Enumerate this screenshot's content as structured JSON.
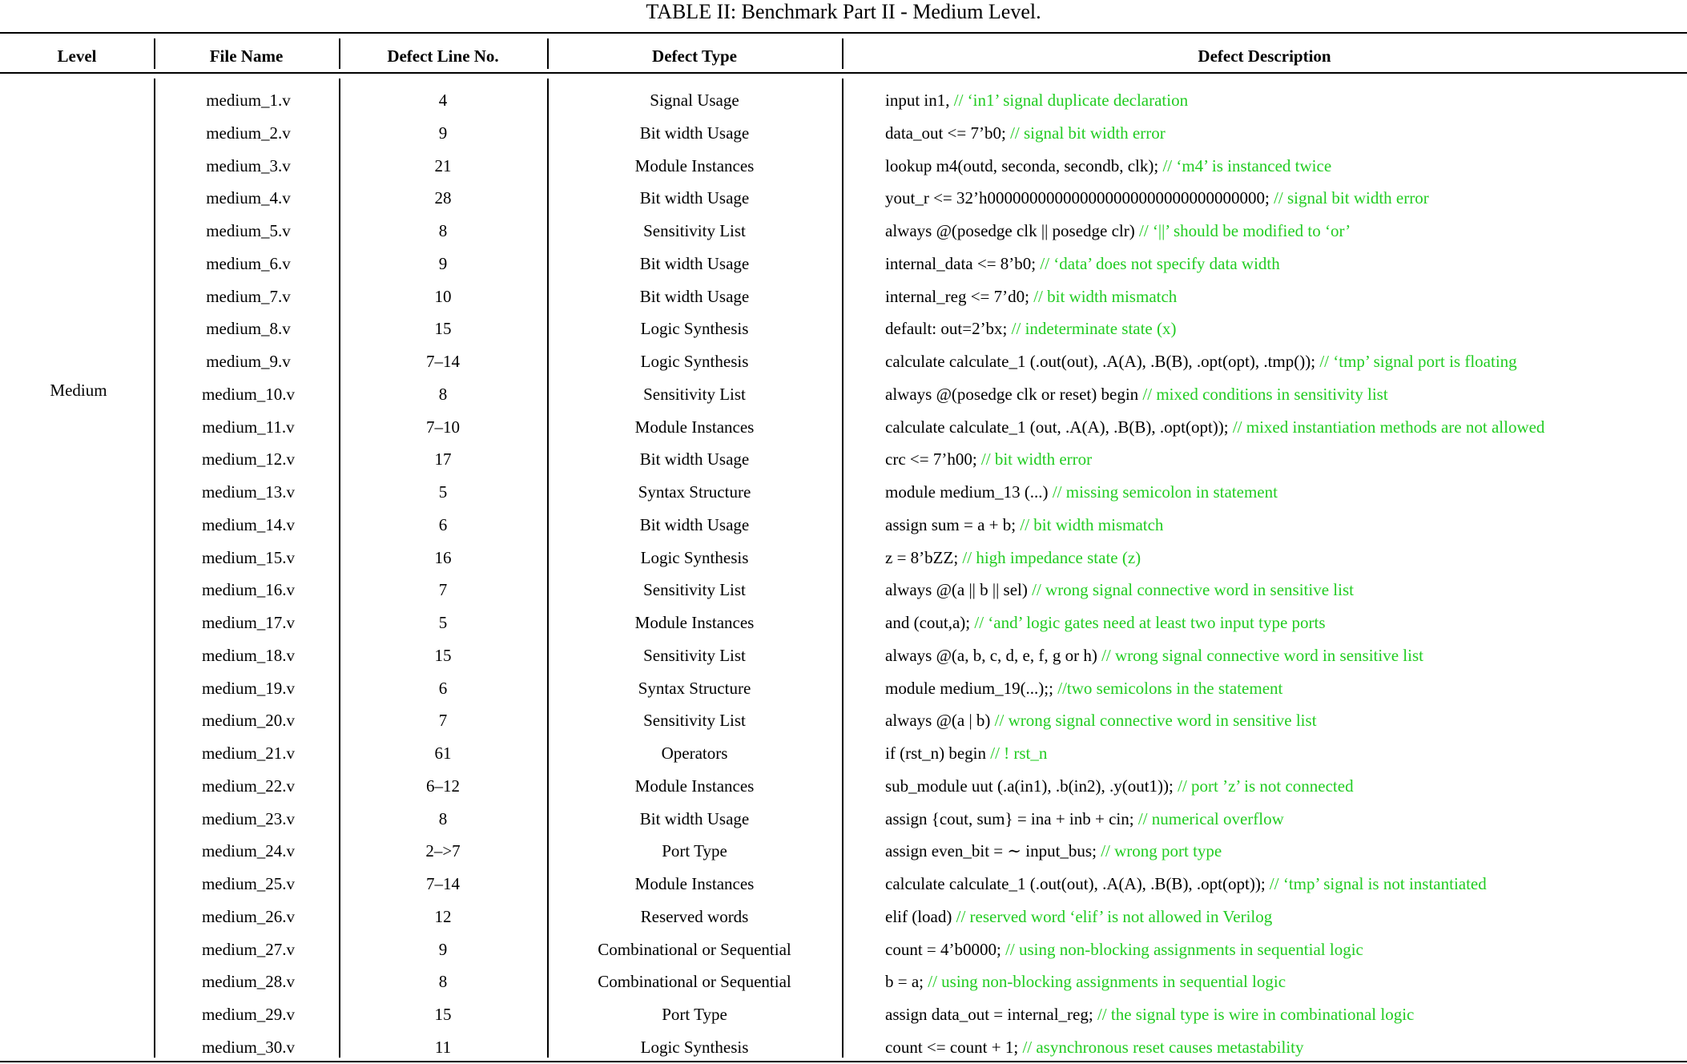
{
  "caption": "TABLE II: Benchmark Part II - Medium Level.",
  "headers": {
    "level": "Level",
    "file_name": "File Name",
    "defect_line": "Defect Line No.",
    "defect_type": "Defect Type",
    "defect_description": "Defect Description"
  },
  "level_value": "Medium",
  "colors": {
    "comment": "#22cc22",
    "text": "#000000"
  },
  "rows": [
    {
      "file": "medium_1.v",
      "line": "4",
      "type": "Signal Usage",
      "code": "input in1,",
      "comment": "// ‘in1’ signal duplicate declaration"
    },
    {
      "file": "medium_2.v",
      "line": "9",
      "type": "Bit width Usage",
      "code": "data_out <= 7’b0;",
      "comment": "// signal bit width error"
    },
    {
      "file": "medium_3.v",
      "line": "21",
      "type": "Module Instances",
      "code": "lookup m4(outd, seconda, secondb, clk);",
      "comment": "// ‘m4’ is instanced twice"
    },
    {
      "file": "medium_4.v",
      "line": "28",
      "type": "Bit width Usage",
      "code": "yout_r <= 32’h000000000000000000000000000000000;",
      "comment": "// signal bit width error"
    },
    {
      "file": "medium_5.v",
      "line": "8",
      "type": "Sensitivity List",
      "code": "always @(posedge clk || posedge clr)",
      "comment": "// ‘||’ should be modified to ‘or’"
    },
    {
      "file": "medium_6.v",
      "line": "9",
      "type": "Bit width Usage",
      "code": "internal_data <= 8’b0;",
      "comment": "// ‘data’ does not specify data width"
    },
    {
      "file": "medium_7.v",
      "line": "10",
      "type": "Bit width Usage",
      "code": "internal_reg <= 7’d0;",
      "comment": "// bit width mismatch"
    },
    {
      "file": "medium_8.v",
      "line": "15",
      "type": "Logic Synthesis",
      "code": "default: out=2’bx;",
      "comment": "// indeterminate state (x)"
    },
    {
      "file": "medium_9.v",
      "line": "7–14",
      "type": "Logic Synthesis",
      "code": "calculate calculate_1 (.out(out), .A(A), .B(B), .opt(opt), .tmp());",
      "comment": "// ‘tmp’ signal port is floating"
    },
    {
      "file": "medium_10.v",
      "line": "8",
      "type": "Sensitivity List",
      "code": "always @(posedge clk or reset) begin",
      "comment": "// mixed conditions in sensitivity list"
    },
    {
      "file": "medium_11.v",
      "line": "7–10",
      "type": "Module Instances",
      "code": "calculate calculate_1 (out, .A(A), .B(B), .opt(opt));",
      "comment": "// mixed instantiation methods are not allowed"
    },
    {
      "file": "medium_12.v",
      "line": "17",
      "type": "Bit width Usage",
      "code": "crc <= 7’h00;",
      "comment": "// bit width error"
    },
    {
      "file": "medium_13.v",
      "line": "5",
      "type": "Syntax Structure",
      "code": "module medium_13 (...)",
      "comment": "// missing semicolon in statement"
    },
    {
      "file": "medium_14.v",
      "line": "6",
      "type": "Bit width Usage",
      "code": "assign sum = a + b;",
      "comment": "// bit width mismatch"
    },
    {
      "file": "medium_15.v",
      "line": "16",
      "type": "Logic Synthesis",
      "code": "z = 8’bZZ;",
      "comment": "// high impedance state (z)"
    },
    {
      "file": "medium_16.v",
      "line": "7",
      "type": "Sensitivity List",
      "code": "always @(a || b || sel)",
      "comment": "// wrong signal connective word in sensitive list"
    },
    {
      "file": "medium_17.v",
      "line": "5",
      "type": "Module Instances",
      "code": "and (cout,a);",
      "comment": "// ‘and’ logic gates need at least two input type ports"
    },
    {
      "file": "medium_18.v",
      "line": "15",
      "type": "Sensitivity List",
      "code": "always @(a, b, c, d, e, f, g or h)",
      "comment": "// wrong signal connective word in sensitive list"
    },
    {
      "file": "medium_19.v",
      "line": "6",
      "type": "Syntax Structure",
      "code": "module medium_19(...);;",
      "comment": "//two semicolons in the statement"
    },
    {
      "file": "medium_20.v",
      "line": "7",
      "type": "Sensitivity List",
      "code": "always @(a | b)",
      "comment": "// wrong signal connective word in sensitive list"
    },
    {
      "file": "medium_21.v",
      "line": "61",
      "type": "Operators",
      "code": "if (rst_n) begin",
      "comment": "// ! rst_n"
    },
    {
      "file": "medium_22.v",
      "line": "6–12",
      "type": "Module Instances",
      "code": "sub_module uut (.a(in1), .b(in2), .y(out1));",
      "comment": "// port ’z’ is not connected"
    },
    {
      "file": "medium_23.v",
      "line": "8",
      "type": "Bit width Usage",
      "code": "assign {cout, sum} = ina + inb + cin;",
      "comment": "// numerical overflow"
    },
    {
      "file": "medium_24.v",
      "line": "2–>7",
      "type": "Port Type",
      "code": "assign even_bit = ∼ input_bus;",
      "comment": "// wrong port type"
    },
    {
      "file": "medium_25.v",
      "line": "7–14",
      "type": "Module Instances",
      "code": "calculate calculate_1 (.out(out), .A(A), .B(B), .opt(opt));",
      "comment": "// ‘tmp’ signal is not instantiated"
    },
    {
      "file": "medium_26.v",
      "line": "12",
      "type": "Reserved words",
      "code": "elif (load)",
      "comment": "// reserved word ‘elif’ is not allowed in Verilog"
    },
    {
      "file": "medium_27.v",
      "line": "9",
      "type": "Combinational or Sequential",
      "code": "count = 4’b0000;",
      "comment": "// using non-blocking assignments in sequential logic"
    },
    {
      "file": "medium_28.v",
      "line": "8",
      "type": "Combinational or Sequential",
      "code": "b = a;",
      "comment": "// using non-blocking assignments in sequential logic"
    },
    {
      "file": "medium_29.v",
      "line": "15",
      "type": "Port Type",
      "code": "assign data_out = internal_reg;",
      "comment": "// the signal type is wire in combinational logic"
    },
    {
      "file": "medium_30.v",
      "line": "11",
      "type": "Logic Synthesis",
      "code": "count <= count + 1;",
      "comment": "// asynchronous reset causes metastability"
    }
  ]
}
